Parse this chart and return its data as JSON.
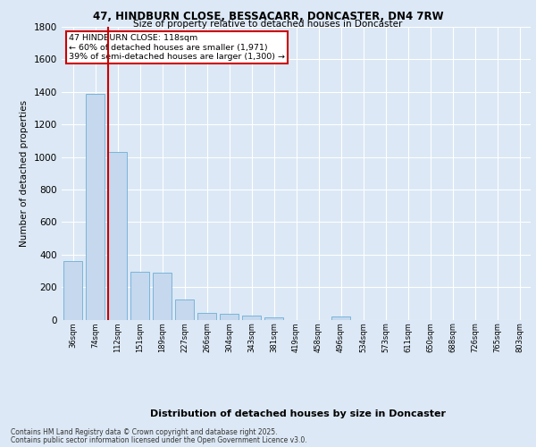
{
  "title_line1": "47, HINDBURN CLOSE, BESSACARR, DONCASTER, DN4 7RW",
  "title_line2": "Size of property relative to detached houses in Doncaster",
  "xlabel": "Distribution of detached houses by size in Doncaster",
  "ylabel": "Number of detached properties",
  "categories": [
    "36sqm",
    "74sqm",
    "112sqm",
    "151sqm",
    "189sqm",
    "227sqm",
    "266sqm",
    "304sqm",
    "343sqm",
    "381sqm",
    "419sqm",
    "458sqm",
    "496sqm",
    "534sqm",
    "573sqm",
    "611sqm",
    "650sqm",
    "688sqm",
    "726sqm",
    "765sqm",
    "803sqm"
  ],
  "values": [
    360,
    1390,
    1030,
    295,
    290,
    125,
    40,
    35,
    25,
    12,
    0,
    0,
    18,
    0,
    0,
    0,
    0,
    0,
    0,
    0,
    0
  ],
  "bar_color": "#c5d8ee",
  "bar_edge_color": "#6baed6",
  "red_line_x": 2,
  "annotation_text": "47 HINDBURN CLOSE: 118sqm\n← 60% of detached houses are smaller (1,971)\n39% of semi-detached houses are larger (1,300) →",
  "annotation_box_color": "#ffffff",
  "annotation_box_edge": "#cc0000",
  "ylim": [
    0,
    1800
  ],
  "yticks": [
    0,
    200,
    400,
    600,
    800,
    1000,
    1200,
    1400,
    1600,
    1800
  ],
  "footer_line1": "Contains HM Land Registry data © Crown copyright and database right 2025.",
  "footer_line2": "Contains public sector information licensed under the Open Government Licence v3.0.",
  "background_color": "#dce8f5",
  "plot_bg_color": "#dce8f5",
  "grid_color": "#ffffff"
}
